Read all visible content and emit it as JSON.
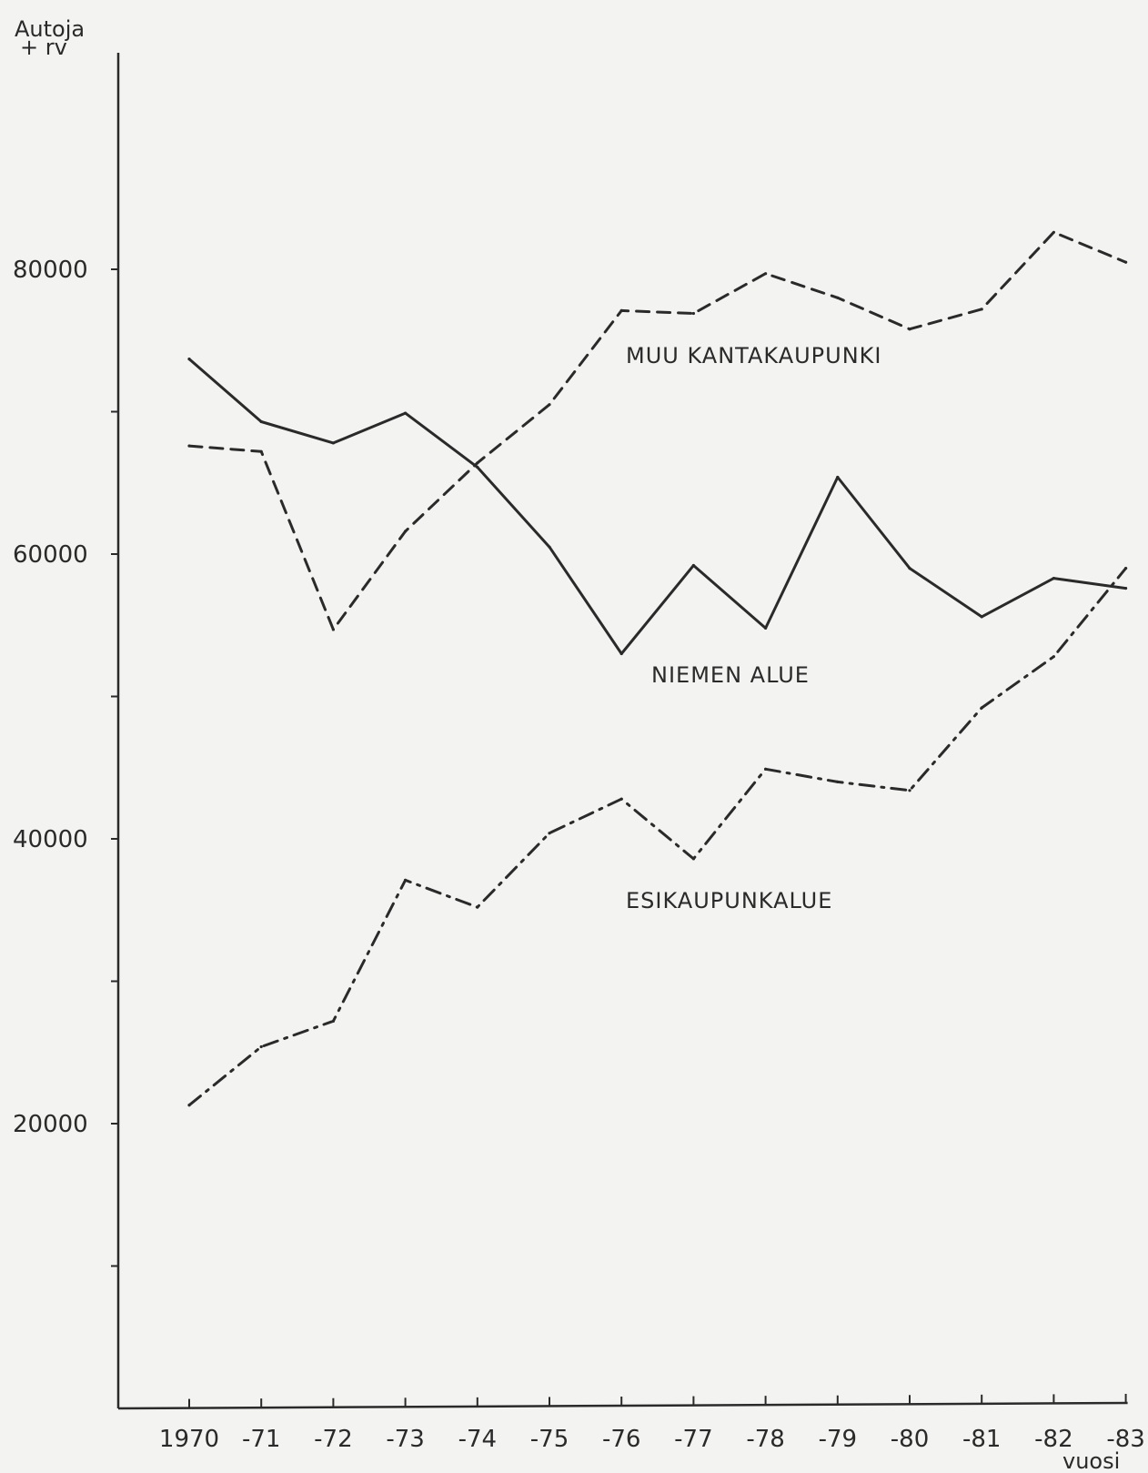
{
  "chart_data": {
    "type": "line",
    "title": "",
    "ylabel_line1": "Autoja",
    "ylabel_line2": "+ rv",
    "xlabel": "vuosi",
    "categories": [
      "1970",
      "-71",
      "-72",
      "-73",
      "-74",
      "-75",
      "-76",
      "-77",
      "-78",
      "-79",
      "-80",
      "-81",
      "-82",
      "-83"
    ],
    "y_tick_labels": [
      "20000",
      "40000",
      "60000",
      "80000"
    ],
    "y_tick_values": [
      20000,
      40000,
      60000,
      80000
    ],
    "y_minor_ticks": [
      10000,
      30000,
      50000,
      70000
    ],
    "ylim": [
      0,
      95000
    ],
    "grid": false,
    "series": [
      {
        "name": "MUU KANTAKAUPUNKI",
        "style": "dashed",
        "values": [
          67600,
          67200,
          54700,
          61600,
          66400,
          70500,
          77100,
          76900,
          79700,
          78000,
          75800,
          77200,
          82600,
          80500
        ]
      },
      {
        "name": "NIEMEN ALUE",
        "style": "solid",
        "values": [
          73700,
          69300,
          67800,
          69900,
          66100,
          60500,
          53000,
          59200,
          54800,
          65400,
          59000,
          55600,
          58300,
          57600
        ]
      },
      {
        "name": "ESIKAUPUNKALUE",
        "style": "dashdot",
        "values": [
          21300,
          25400,
          27200,
          37100,
          35200,
          40400,
          42800,
          38600,
          44900,
          44000,
          43400,
          49200,
          52800,
          59000
        ]
      }
    ],
    "line_color": "#2a2a2a"
  }
}
